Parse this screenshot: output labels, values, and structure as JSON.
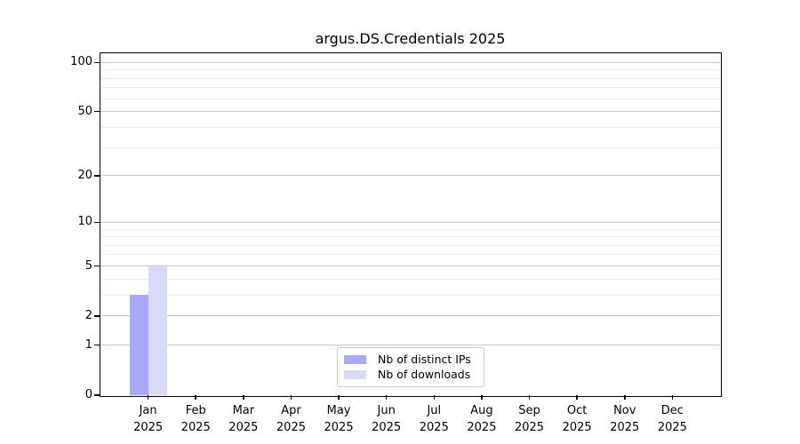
{
  "chart_data": {
    "type": "bar",
    "title": "argus.DS.Credentials 2025",
    "months": [
      "Jan",
      "Feb",
      "Mar",
      "Apr",
      "May",
      "Jun",
      "Jul",
      "Aug",
      "Sep",
      "Oct",
      "Nov",
      "Dec"
    ],
    "year": "2025",
    "series": [
      {
        "name": "Nb of distinct IPs",
        "color": "#a9a9f9",
        "values": [
          3,
          0,
          0,
          0,
          0,
          0,
          0,
          0,
          0,
          0,
          0,
          0
        ]
      },
      {
        "name": "Nb of downloads",
        "color": "#d9d9f9",
        "values": [
          5,
          0,
          0,
          0,
          0,
          0,
          0,
          0,
          0,
          0,
          0,
          0
        ]
      }
    ],
    "yscale": "log1p",
    "ylim": [
      0,
      113.6
    ],
    "yticks": [
      0,
      1,
      2,
      5,
      10,
      20,
      50,
      100
    ],
    "minor_gridlines": [
      3,
      4,
      6,
      7,
      8,
      9,
      30,
      40,
      60,
      70,
      80,
      90
    ],
    "grid": true,
    "legend_position": "lower center"
  },
  "colors": {
    "bar_distinct_ips": "#a9a9f9",
    "bar_downloads": "#d9d9f9",
    "grid_major": "#c6c6c6",
    "grid_minor": "#ececec",
    "axis": "#000000",
    "text": "#000000",
    "legend_border": "#cccccc",
    "background": "#ffffff"
  }
}
